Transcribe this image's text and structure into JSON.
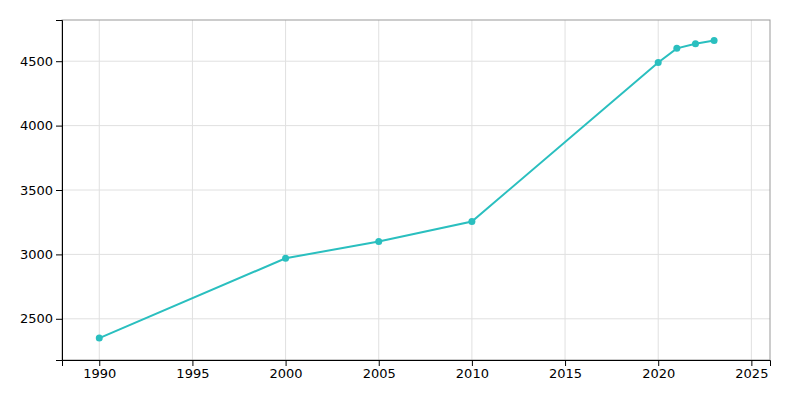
{
  "chart_data": {
    "type": "line",
    "x": [
      1990,
      2000,
      2005,
      2010,
      2020,
      2021,
      2022,
      2023
    ],
    "values": [
      2350,
      2970,
      3100,
      3255,
      4490,
      4600,
      4635,
      4660
    ],
    "color": "#2abfbf",
    "marker": "circle",
    "xlim": [
      1988,
      2026
    ],
    "ylim": [
      2180,
      4820
    ],
    "xticks": [
      1990,
      1995,
      2000,
      2005,
      2010,
      2015,
      2020,
      2025
    ],
    "yticks": [
      2500,
      3000,
      3500,
      4000,
      4500
    ],
    "grid": true
  }
}
